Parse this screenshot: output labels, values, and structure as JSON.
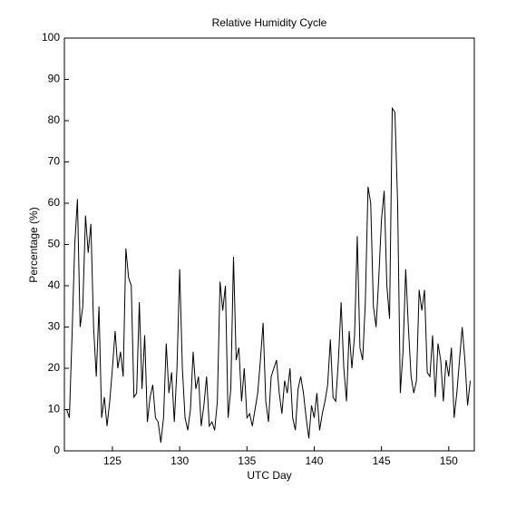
{
  "chart_data": {
    "type": "line",
    "title": "Relative Humidity Cycle",
    "x_label": "UTC Day",
    "y_label": "Percentage (%)",
    "x": [
      121.6,
      121.8,
      122,
      122.2,
      122.4,
      122.6,
      122.8,
      123,
      123.2,
      123.4,
      123.6,
      123.8,
      124,
      124.2,
      124.4,
      124.6,
      124.8,
      125,
      125.2,
      125.4,
      125.6,
      125.8,
      126,
      126.2,
      126.4,
      126.6,
      126.8,
      127,
      127.2,
      127.4,
      127.6,
      127.8,
      128,
      128.2,
      128.4,
      128.6,
      128.8,
      129,
      129.2,
      129.4,
      129.6,
      129.8,
      130,
      130.2,
      130.4,
      130.6,
      130.8,
      131,
      131.2,
      131.4,
      131.6,
      131.8,
      132,
      132.2,
      132.4,
      132.6,
      132.8,
      133,
      133.2,
      133.4,
      133.6,
      133.8,
      134,
      134.2,
      134.4,
      134.6,
      134.8,
      135,
      135.2,
      135.4,
      135.6,
      135.8,
      136,
      136.2,
      136.4,
      136.6,
      136.8,
      137,
      137.2,
      137.4,
      137.6,
      137.8,
      138,
      138.2,
      138.4,
      138.6,
      138.8,
      139,
      139.2,
      139.4,
      139.6,
      139.8,
      140,
      140.2,
      140.4,
      140.6,
      140.8,
      141,
      141.2,
      141.4,
      141.6,
      141.8,
      142,
      142.2,
      142.4,
      142.6,
      142.8,
      143,
      143.2,
      143.4,
      143.6,
      143.8,
      144,
      144.2,
      144.4,
      144.6,
      144.8,
      145,
      145.2,
      145.4,
      145.6,
      145.8,
      146,
      146.2,
      146.4,
      146.6,
      146.8,
      147,
      147.2,
      147.4,
      147.6,
      147.8,
      148,
      148.2,
      148.4,
      148.6,
      148.8,
      149,
      149.2,
      149.4,
      149.6,
      149.8,
      150,
      150.2,
      150.4,
      150.6,
      150.8,
      151,
      151.2,
      151.4,
      151.6
    ],
    "series": [
      {
        "color": "#000000",
        "values": [
          10,
          8,
          28,
          50,
          61,
          30,
          35,
          57,
          48,
          55,
          30,
          18,
          35,
          8,
          13,
          6,
          12,
          20,
          29,
          20,
          24,
          18,
          49,
          42,
          40,
          13,
          14,
          36,
          15,
          28,
          7,
          13,
          16,
          8,
          7,
          2,
          8,
          26,
          14,
          19,
          7,
          20,
          44,
          20,
          8,
          5,
          10,
          24,
          15,
          18,
          6,
          11,
          18,
          6,
          7,
          5,
          12,
          41,
          34,
          40,
          8,
          15,
          47,
          22,
          25,
          12,
          20,
          8,
          9,
          6,
          10,
          14,
          22,
          31,
          12,
          7,
          18,
          20,
          22,
          14,
          9,
          17,
          14,
          20,
          8,
          5,
          15,
          18,
          14,
          8,
          3,
          11,
          8,
          14,
          5,
          9,
          12,
          16,
          27,
          13,
          12,
          22,
          36,
          20,
          12,
          29,
          20,
          28,
          52,
          25,
          22,
          36,
          64,
          60,
          35,
          30,
          42,
          56,
          63,
          40,
          32,
          83,
          82,
          60,
          14,
          24,
          44,
          30,
          18,
          14,
          17,
          39,
          34,
          39,
          19,
          18,
          28,
          13,
          26,
          22,
          12,
          22,
          18,
          25,
          8,
          14,
          22,
          30,
          22,
          11,
          17
        ]
      }
    ],
    "xlim": [
      121.43,
      151.9
    ],
    "ylim": [
      0,
      100
    ],
    "xticks": [
      125,
      130,
      135,
      140,
      145,
      150
    ],
    "yticks": [
      0,
      10,
      20,
      30,
      40,
      50,
      60,
      70,
      80,
      90,
      100
    ]
  }
}
